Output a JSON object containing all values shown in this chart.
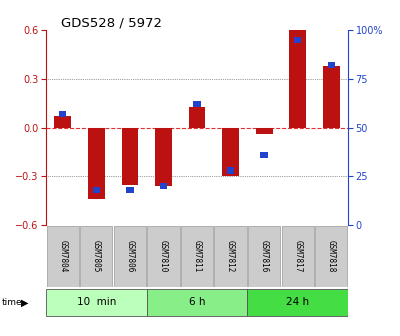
{
  "title": "GDS528 / 5972",
  "samples": [
    "GSM7804",
    "GSM7805",
    "GSM7806",
    "GSM7810",
    "GSM7811",
    "GSM7812",
    "GSM7816",
    "GSM7817",
    "GSM7818"
  ],
  "log_ratio": [
    0.07,
    -0.44,
    -0.35,
    -0.36,
    0.13,
    -0.3,
    -0.04,
    0.6,
    0.38
  ],
  "percentile": [
    57,
    18,
    18,
    20,
    62,
    28,
    36,
    95,
    82
  ],
  "groups": [
    {
      "label": "10  min",
      "indices": [
        0,
        1,
        2
      ],
      "color": "#bbffbb"
    },
    {
      "label": "6 h",
      "indices": [
        3,
        4,
        5
      ],
      "color": "#88ee88"
    },
    {
      "label": "24 h",
      "indices": [
        6,
        7,
        8
      ],
      "color": "#44dd44"
    }
  ],
  "ylim": [
    -0.6,
    0.6
  ],
  "yticks_left": [
    -0.6,
    -0.3,
    0.0,
    0.3,
    0.6
  ],
  "yticks_right": [
    0,
    25,
    50,
    75,
    100
  ],
  "bar_color": "#bb1111",
  "pct_color": "#2244cc",
  "zero_line_color": "#dd3333",
  "grid_color": "#444444",
  "bar_width": 0.5,
  "pct_bar_width": 0.22,
  "bg_color": "#ffffff"
}
